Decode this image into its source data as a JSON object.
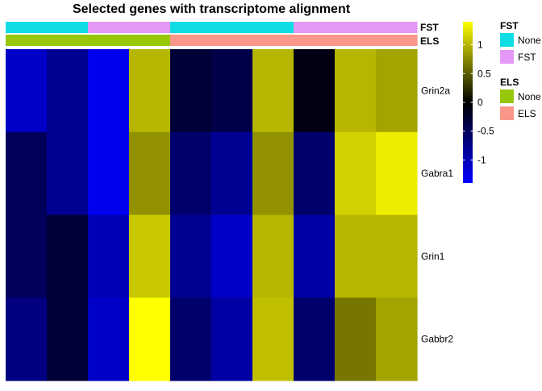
{
  "chart_data": {
    "type": "heatmap",
    "title": "Selected genes with transcriptome alignment",
    "rows": [
      "Grin2a",
      "Gabra1",
      "Grin1",
      "Gabbr2"
    ],
    "n_columns": 10,
    "values": [
      [
        -1.1,
        -0.8,
        -1.3,
        1.0,
        -0.3,
        -0.4,
        1.0,
        -0.1,
        1.0,
        0.9
      ],
      [
        -0.5,
        -0.8,
        -1.3,
        0.8,
        -0.6,
        -0.8,
        0.8,
        -0.6,
        1.15,
        1.3
      ],
      [
        -0.5,
        -0.3,
        -1.0,
        1.1,
        -0.8,
        -1.1,
        1.0,
        -0.9,
        1.0,
        1.0
      ],
      [
        -0.7,
        -0.3,
        -1.1,
        1.4,
        -0.6,
        -0.9,
        1.05,
        -0.6,
        0.65,
        0.9
      ]
    ],
    "color_scale": {
      "min": -1.4,
      "mid": 0,
      "max": 1.4,
      "low_color": "#0000ff",
      "mid_color": "#000000",
      "high_color": "#ffff00",
      "ticks": [
        1,
        0.5,
        0,
        -0.5,
        -1
      ],
      "tick_labels": [
        "1",
        "0.5",
        "0",
        "-0.5",
        "-1"
      ]
    },
    "column_annotations": [
      {
        "name": "FST",
        "values": [
          "None",
          "None",
          "FST",
          "FST",
          "None",
          "None",
          "None",
          "FST",
          "FST",
          "FST"
        ]
      },
      {
        "name": "ELS",
        "values": [
          "None",
          "None",
          "None",
          "None",
          "ELS",
          "ELS",
          "ELS",
          "ELS",
          "ELS",
          "ELS"
        ]
      }
    ],
    "legends": [
      {
        "title": "FST",
        "entries": [
          {
            "label": "None",
            "color": "#10dce4"
          },
          {
            "label": "FST",
            "color": "#e399f5"
          }
        ]
      },
      {
        "title": "ELS",
        "entries": [
          {
            "label": "None",
            "color": "#97c70a"
          },
          {
            "label": "ELS",
            "color": "#fb978a"
          }
        ]
      }
    ],
    "grid": false,
    "legend_placement": "right"
  }
}
